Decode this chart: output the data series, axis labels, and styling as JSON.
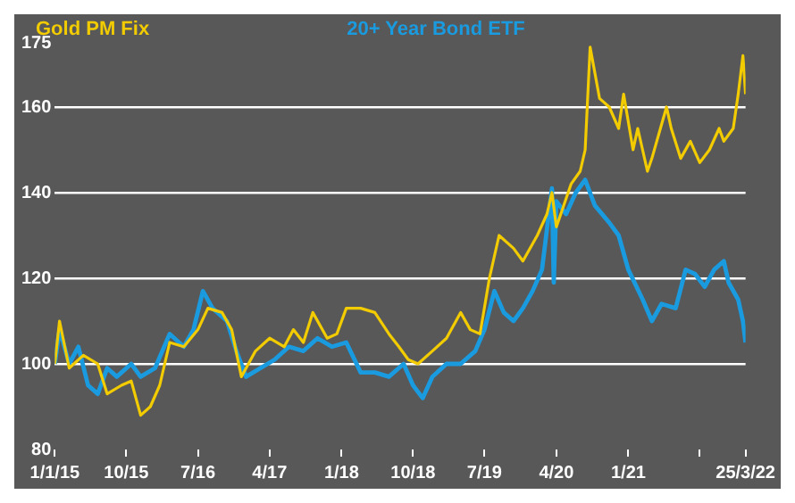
{
  "chart_data": {
    "type": "line",
    "legend": "top",
    "grid": "y",
    "xlim": [
      "2015-01-01",
      "2022-03-25"
    ],
    "ylim": [
      80,
      175
    ],
    "xticks": [
      {
        "value": "2015-01-01",
        "label": "1/1/15"
      },
      {
        "value": "2015-10-01",
        "label": "10/15"
      },
      {
        "value": "2016-07-01",
        "label": "7/16"
      },
      {
        "value": "2017-04-01",
        "label": "4/17"
      },
      {
        "value": "2018-01-01",
        "label": "1/18"
      },
      {
        "value": "2018-10-01",
        "label": "10/18"
      },
      {
        "value": "2019-07-01",
        "label": "7/19"
      },
      {
        "value": "2020-04-01",
        "label": "4/20"
      },
      {
        "value": "2021-01-01",
        "label": "1/21"
      },
      {
        "value": "2021-10-01",
        "label": null
      },
      {
        "value": "2022-03-25",
        "label": "25/3/22"
      }
    ],
    "yticks": [
      80,
      100,
      120,
      140,
      160,
      175
    ],
    "series": [
      {
        "name": "Gold PM Fix",
        "color": "#f2cc00",
        "x": [
          "2015-01-01",
          "2015-01-19",
          "2015-02-25",
          "2015-04-20",
          "2015-06-14",
          "2015-07-20",
          "2015-09-13",
          "2015-10-20",
          "2015-11-25",
          "2016-01-01",
          "2016-02-06",
          "2016-03-15",
          "2016-05-08",
          "2016-07-01",
          "2016-08-08",
          "2016-10-01",
          "2016-11-07",
          "2016-12-14",
          "2017-02-06",
          "2017-04-01",
          "2017-05-27",
          "2017-07-01",
          "2017-08-08",
          "2017-09-13",
          "2017-11-07",
          "2017-12-14",
          "2018-01-19",
          "2018-03-15",
          "2018-05-08",
          "2018-07-01",
          "2018-08-08",
          "2018-09-13",
          "2018-10-20",
          "2018-12-14",
          "2019-02-06",
          "2019-04-01",
          "2019-05-08",
          "2019-06-14",
          "2019-07-20",
          "2019-08-26",
          "2019-10-20",
          "2019-11-25",
          "2020-01-19",
          "2020-02-25",
          "2020-03-15",
          "2020-04-01",
          "2020-05-27",
          "2020-07-01",
          "2020-07-20",
          "2020-08-08",
          "2020-09-13",
          "2020-10-20",
          "2020-11-25",
          "2020-12-14",
          "2021-01-19",
          "2021-02-06",
          "2021-03-15",
          "2021-04-01",
          "2021-05-27",
          "2021-06-14",
          "2021-07-20",
          "2021-08-26",
          "2021-10-01",
          "2021-11-07",
          "2021-12-14",
          "2022-01-01",
          "2022-02-06",
          "2022-02-25",
          "2022-03-15",
          "2022-03-25"
        ],
        "values": [
          100,
          110,
          99,
          102,
          100,
          93,
          95,
          96,
          88,
          90,
          95,
          105,
          104,
          108,
          113,
          112,
          108,
          97,
          103,
          106,
          104,
          108,
          105,
          112,
          106,
          107,
          113,
          113,
          112,
          107,
          104,
          101,
          100,
          103,
          106,
          112,
          108,
          107,
          120,
          130,
          127,
          124,
          130,
          135,
          140,
          132,
          142,
          145,
          150,
          174,
          162,
          160,
          155,
          163,
          150,
          155,
          145,
          148,
          160,
          155,
          148,
          152,
          147,
          150,
          155,
          152,
          155,
          163,
          172,
          163
        ]
      },
      {
        "name": "20+ Year Bond ETF",
        "color": "#1a9be0",
        "x": [
          "2015-01-01",
          "2015-01-19",
          "2015-02-25",
          "2015-04-01",
          "2015-05-08",
          "2015-06-14",
          "2015-07-20",
          "2015-08-26",
          "2015-10-20",
          "2015-11-25",
          "2016-01-19",
          "2016-03-15",
          "2016-05-08",
          "2016-06-14",
          "2016-07-20",
          "2016-08-26",
          "2016-10-20",
          "2016-11-25",
          "2017-01-01",
          "2017-02-25",
          "2017-04-20",
          "2017-06-14",
          "2017-08-08",
          "2017-10-01",
          "2017-11-25",
          "2018-01-19",
          "2018-03-15",
          "2018-05-08",
          "2018-07-01",
          "2018-08-26",
          "2018-10-01",
          "2018-11-07",
          "2018-12-14",
          "2019-02-06",
          "2019-04-01",
          "2019-05-27",
          "2019-07-01",
          "2019-08-08",
          "2019-09-13",
          "2019-10-20",
          "2019-11-25",
          "2020-01-01",
          "2020-02-06",
          "2020-03-15",
          "2020-03-22",
          "2020-04-01",
          "2020-05-08",
          "2020-06-14",
          "2020-07-20",
          "2020-08-26",
          "2020-10-20",
          "2020-11-25",
          "2021-01-01",
          "2021-02-25",
          "2021-04-01",
          "2021-05-08",
          "2021-07-01",
          "2021-08-08",
          "2021-09-13",
          "2021-10-20",
          "2021-11-25",
          "2022-01-01",
          "2022-01-19",
          "2022-02-25",
          "2022-03-15",
          "2022-03-25"
        ],
        "values": [
          100,
          108,
          100,
          104,
          95,
          93,
          99,
          97,
          100,
          97,
          99,
          107,
          104,
          108,
          117,
          113,
          110,
          103,
          97,
          99,
          101,
          104,
          103,
          106,
          104,
          105,
          98,
          98,
          97,
          100,
          95,
          92,
          97,
          100,
          100,
          103,
          108,
          117,
          112,
          110,
          113,
          117,
          122,
          141,
          119,
          138,
          135,
          140,
          143,
          137,
          133,
          130,
          122,
          115,
          110,
          114,
          113,
          122,
          121,
          118,
          122,
          124,
          119,
          115,
          110,
          105
        ]
      }
    ]
  }
}
